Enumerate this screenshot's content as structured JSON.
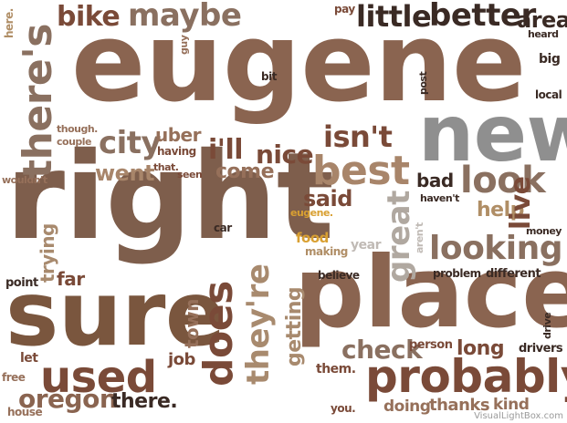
{
  "words": {
    "eugene": "eugene",
    "right": "right",
    "place": "place",
    "sure": "sure",
    "new": "new",
    "probably": "probably",
    "best": "best",
    "looking": "looking",
    "used": "used",
    "does": "does",
    "theres": "there's",
    "look": "look",
    "maybe": "maybe",
    "better": "better",
    "little": "little",
    "bike": "bike",
    "city": "city",
    "isnt": "isn't",
    "great": "great",
    "theyre": "they're",
    "oregon": "oregon",
    "check": "check",
    "live": "live",
    "help": "help",
    "ill": "i'll",
    "nice": "nice",
    "went": "went",
    "come": "come",
    "said": "said",
    "area": "area",
    "there": "there.",
    "long": "long",
    "getting": "getting",
    "town": "town",
    "job": "job",
    "trying": "trying",
    "uber": "uber",
    "bad": "bad",
    "food": "food",
    "far": "far",
    "thanks": "thanks",
    "doing": "doing",
    "kind": "kind",
    "person": "person",
    "drivers": "drivers",
    "them": "them.",
    "let": "let",
    "free": "free",
    "house": "house",
    "you": "you.",
    "point": "point",
    "problem": "problem",
    "different": "different",
    "believe": "believe",
    "making": "making",
    "year": "year",
    "eugene_dot": "eugene.",
    "car": "car",
    "having": "having",
    "seen": "seen",
    "that": "that.",
    "though": "though.",
    "couple": "couple",
    "wouldnt": "wouldn't",
    "here": "here.",
    "guy": "guy",
    "bit": "bit",
    "pay": "pay",
    "post": "post",
    "heard": "heard",
    "big": "big",
    "local": "local",
    "havent": "haven't",
    "money": "money",
    "arent": "aren't",
    "drive": "drive"
  },
  "watermark": "VisualLightBox.com",
  "colors": {
    "dark_brown": "#7a4a38",
    "mid_brown": "#96705a",
    "light_brown": "#a88a6e",
    "tan": "#b08e66",
    "grey": "#8a8a8a",
    "dark": "#3a2a24",
    "orange": "#d9a032"
  }
}
